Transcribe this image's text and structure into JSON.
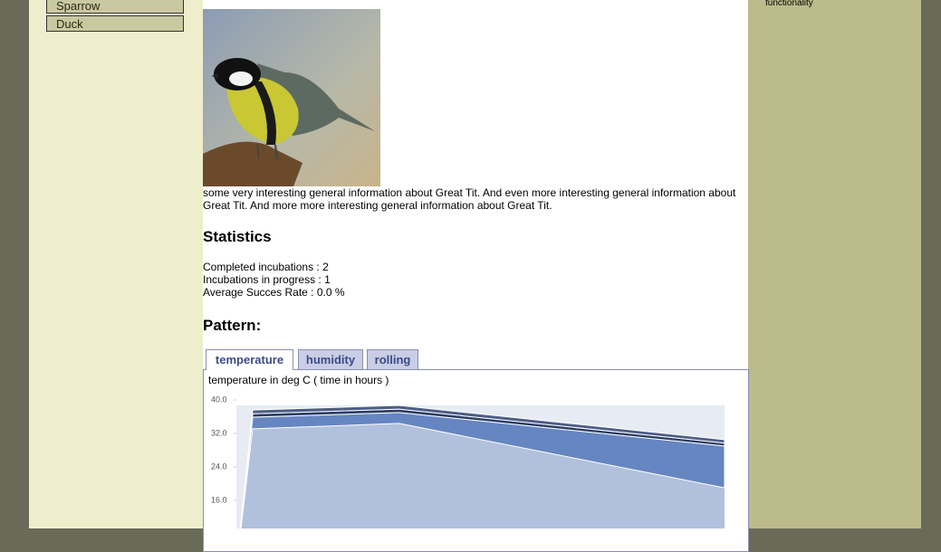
{
  "nav": {
    "items": [
      "Sparrow",
      "Duck"
    ]
  },
  "sidebar_right": {
    "text": "functionality"
  },
  "article": {
    "description": "some very interesting general information about Great Tit. And even more interesting general information about Great Tit. And more more interesting general information about Great Tit.",
    "statistics": {
      "heading": "Statistics",
      "lines": [
        "Completed incubations : 2",
        "Incubations in progress : 1",
        "Average Succes Rate : 0.0 %"
      ]
    },
    "pattern": {
      "heading": "Pattern:",
      "tabs": [
        "temperature",
        "humidity",
        "rolling"
      ],
      "active_tab": 0
    }
  },
  "chart_data": {
    "type": "area",
    "stacked": true,
    "title": "temperature in deg C ( time in hours )",
    "x": [
      0,
      1,
      10,
      30
    ],
    "xlim": [
      0,
      30
    ],
    "ylim": [
      0,
      40
    ],
    "yticks": [
      {
        "value": 40,
        "label": "40.0"
      },
      {
        "value": 32,
        "label": "32.0"
      },
      {
        "value": 24,
        "label": "24.0"
      },
      {
        "value": 16,
        "label": "16.0"
      }
    ],
    "series": [
      {
        "color": "#b1c1dd",
        "values": [
          0,
          33.1,
          34.4,
          19.0
        ]
      },
      {
        "color": "#6686c2",
        "values": [
          0,
          2.8,
          2.6,
          10.0
        ]
      },
      {
        "color": "#2b3b63",
        "values": [
          0,
          0.8,
          0.8,
          0.7
        ]
      },
      {
        "color": "#4d5d86",
        "values": [
          0,
          0.9,
          0.9,
          0.8
        ]
      }
    ]
  }
}
